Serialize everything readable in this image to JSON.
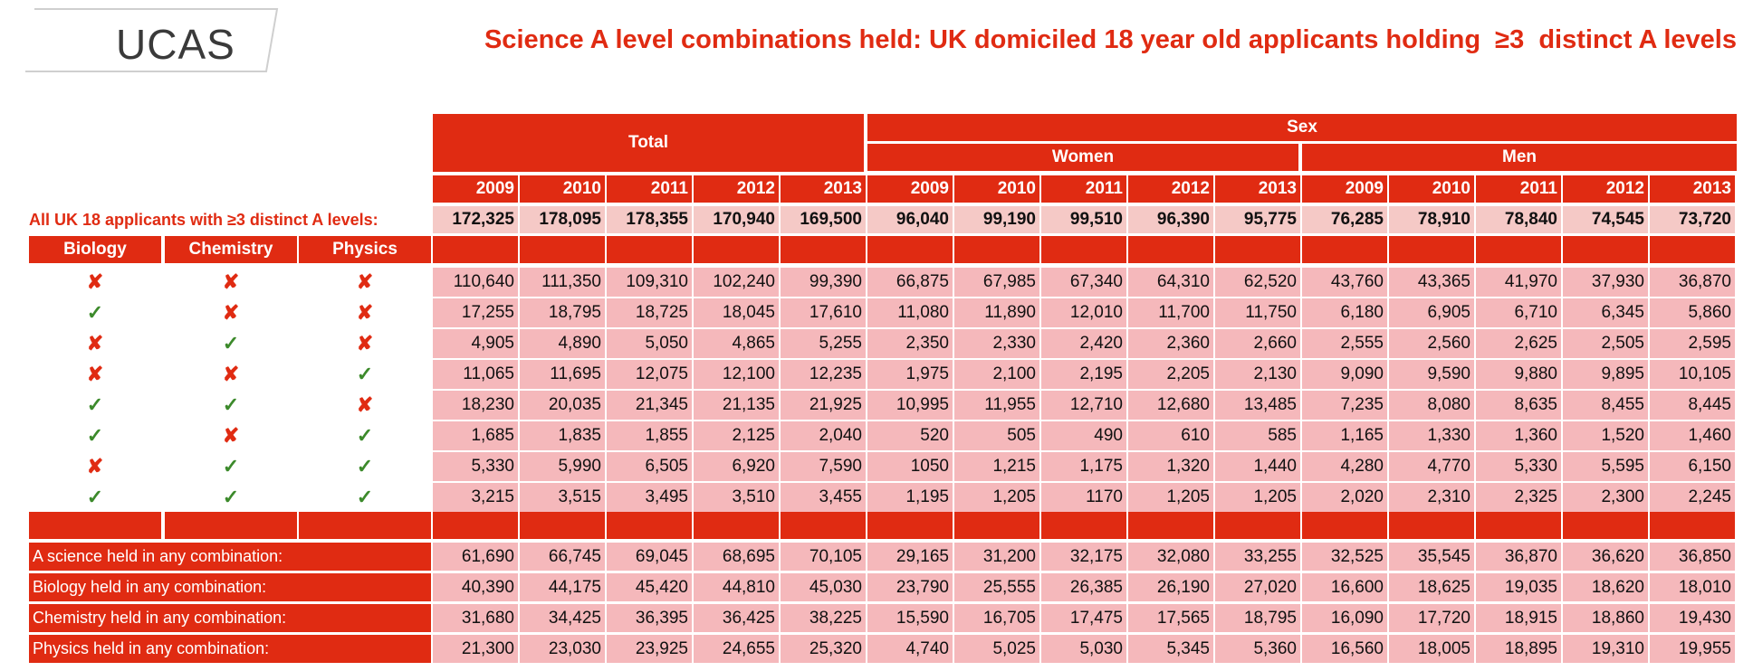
{
  "logo": {
    "text": "UCAS"
  },
  "title": "Science A level combinations held: UK domiciled 18 year old applicants holding  ≥3  distinct A levels",
  "headers": {
    "total": "Total",
    "sex": "Sex",
    "women": "Women",
    "men": "Men",
    "years": [
      "2009",
      "2010",
      "2011",
      "2012",
      "2013"
    ]
  },
  "all_applicants": {
    "label": "All UK 18 applicants with ≥3 distinct A levels:",
    "values": [
      "172,325",
      "178,095",
      "178,355",
      "170,940",
      "169,500",
      "96,040",
      "99,190",
      "99,510",
      "96,390",
      "95,775",
      "76,285",
      "78,910",
      "78,840",
      "74,545",
      "73,720"
    ]
  },
  "subject_headers": [
    "Biology",
    "Chemistry",
    "Physics"
  ],
  "marks": {
    "cross": "✘",
    "tick": "✓"
  },
  "combinations": [
    {
      "bio": false,
      "chem": false,
      "phys": false,
      "values": [
        "110,640",
        "111,350",
        "109,310",
        "102,240",
        "99,390",
        "66,875",
        "67,985",
        "67,340",
        "64,310",
        "62,520",
        "43,760",
        "43,365",
        "41,970",
        "37,930",
        "36,870"
      ]
    },
    {
      "bio": true,
      "chem": false,
      "phys": false,
      "values": [
        "17,255",
        "18,795",
        "18,725",
        "18,045",
        "17,610",
        "11,080",
        "11,890",
        "12,010",
        "11,700",
        "11,750",
        "6,180",
        "6,905",
        "6,710",
        "6,345",
        "5,860"
      ]
    },
    {
      "bio": false,
      "chem": true,
      "phys": false,
      "values": [
        "4,905",
        "4,890",
        "5,050",
        "4,865",
        "5,255",
        "2,350",
        "2,330",
        "2,420",
        "2,360",
        "2,660",
        "2,555",
        "2,560",
        "2,625",
        "2,505",
        "2,595"
      ]
    },
    {
      "bio": false,
      "chem": false,
      "phys": true,
      "values": [
        "11,065",
        "11,695",
        "12,075",
        "12,100",
        "12,235",
        "1,975",
        "2,100",
        "2,195",
        "2,205",
        "2,130",
        "9,090",
        "9,590",
        "9,880",
        "9,895",
        "10,105"
      ]
    },
    {
      "bio": true,
      "chem": true,
      "phys": false,
      "values": [
        "18,230",
        "20,035",
        "21,345",
        "21,135",
        "21,925",
        "10,995",
        "11,955",
        "12,710",
        "12,680",
        "13,485",
        "7,235",
        "8,080",
        "8,635",
        "8,455",
        "8,445"
      ]
    },
    {
      "bio": true,
      "chem": false,
      "phys": true,
      "values": [
        "1,685",
        "1,835",
        "1,855",
        "2,125",
        "2,040",
        "520",
        "505",
        "490",
        "610",
        "585",
        "1,165",
        "1,330",
        "1,360",
        "1,520",
        "1,460"
      ]
    },
    {
      "bio": false,
      "chem": true,
      "phys": true,
      "values": [
        "5,330",
        "5,990",
        "6,505",
        "6,920",
        "7,590",
        "1050",
        "1,215",
        "1,175",
        "1,320",
        "1,440",
        "4,280",
        "4,770",
        "5,330",
        "5,595",
        "6,150"
      ]
    },
    {
      "bio": true,
      "chem": true,
      "phys": true,
      "values": [
        "3,215",
        "3,515",
        "3,495",
        "3,510",
        "3,455",
        "1,195",
        "1,205",
        "1170",
        "1,205",
        "1,205",
        "2,020",
        "2,310",
        "2,325",
        "2,300",
        "2,245"
      ]
    }
  ],
  "summary": [
    {
      "label": "A science held in any combination:",
      "values": [
        "61,690",
        "66,745",
        "69,045",
        "68,695",
        "70,105",
        "29,165",
        "31,200",
        "32,175",
        "32,080",
        "33,255",
        "32,525",
        "35,545",
        "36,870",
        "36,620",
        "36,850"
      ]
    },
    {
      "label": "Biology held in any combination:",
      "values": [
        "40,390",
        "44,175",
        "45,420",
        "44,810",
        "45,030",
        "23,790",
        "25,555",
        "26,385",
        "26,190",
        "27,020",
        "16,600",
        "18,625",
        "19,035",
        "18,620",
        "18,010"
      ]
    },
    {
      "label": "Chemistry held in any combination:",
      "values": [
        "31,680",
        "34,425",
        "36,395",
        "36,425",
        "38,225",
        "15,590",
        "16,705",
        "17,475",
        "17,565",
        "18,795",
        "16,090",
        "17,720",
        "18,915",
        "18,860",
        "19,430"
      ]
    },
    {
      "label": "Physics held in any combination:",
      "values": [
        "21,300",
        "23,030",
        "23,925",
        "24,655",
        "25,320",
        "4,740",
        "5,025",
        "5,030",
        "5,345",
        "5,360",
        "16,560",
        "18,005",
        "18,895",
        "19,310",
        "19,955"
      ]
    }
  ]
}
